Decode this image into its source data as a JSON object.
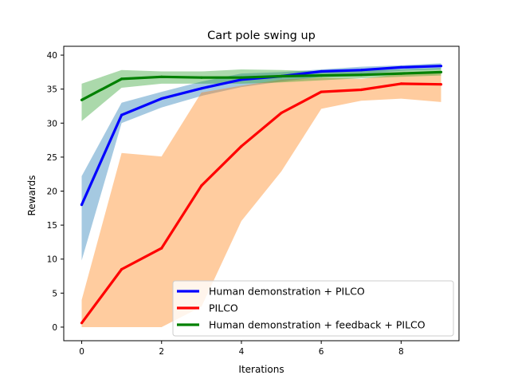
{
  "chart_data": {
    "type": "line",
    "title": "Cart pole swing up",
    "xlabel": "Iterations",
    "ylabel": "Rewards",
    "xlim": [
      -0.45,
      9.45
    ],
    "ylim": [
      -2.0,
      41.3
    ],
    "x_ticks": [
      0,
      2,
      4,
      6,
      8
    ],
    "y_ticks": [
      0,
      5,
      10,
      15,
      20,
      25,
      30,
      35,
      40
    ],
    "grid": false,
    "legend_position": "lower-right",
    "x": [
      0,
      1,
      2,
      3,
      4,
      5,
      6,
      7,
      8,
      9
    ],
    "series": [
      {
        "name": "Human demonstration + PILCO",
        "color": "#0000ff",
        "band_color": "#1f77b4",
        "values": [
          18.0,
          31.2,
          33.6,
          35.1,
          36.4,
          36.9,
          37.6,
          37.8,
          38.2,
          38.4
        ],
        "lower": [
          9.8,
          30.0,
          32.3,
          34.0,
          35.3,
          36.1,
          36.8,
          37.2,
          37.7,
          37.9
        ],
        "upper": [
          22.2,
          33.0,
          34.6,
          36.1,
          37.3,
          37.5,
          37.9,
          38.3,
          38.5,
          38.8
        ]
      },
      {
        "name": "PILCO",
        "color": "#ff0000",
        "band_color": "#ff7f0e",
        "values": [
          0.6,
          8.5,
          11.6,
          20.8,
          26.6,
          31.5,
          34.6,
          34.9,
          35.8,
          35.7
        ],
        "lower": [
          0.0,
          0.0,
          0.0,
          3.0,
          15.6,
          22.9,
          32.1,
          33.3,
          33.6,
          33.1
        ],
        "upper": [
          4.0,
          25.6,
          25.1,
          34.5,
          35.5,
          36.4,
          36.7,
          36.5,
          37.2,
          37.3
        ]
      },
      {
        "name": "Human demonstration + feedback + PILCO",
        "color": "#008000",
        "band_color": "#2ca02c",
        "values": [
          33.4,
          36.5,
          36.8,
          36.7,
          36.7,
          36.9,
          37.0,
          37.1,
          37.3,
          37.5
        ],
        "lower": [
          30.3,
          35.2,
          35.8,
          35.8,
          35.8,
          36.0,
          36.3,
          36.6,
          36.8,
          37.0
        ],
        "upper": [
          35.8,
          37.8,
          37.6,
          37.6,
          37.9,
          37.8,
          37.6,
          37.7,
          37.9,
          38.1
        ]
      }
    ]
  }
}
